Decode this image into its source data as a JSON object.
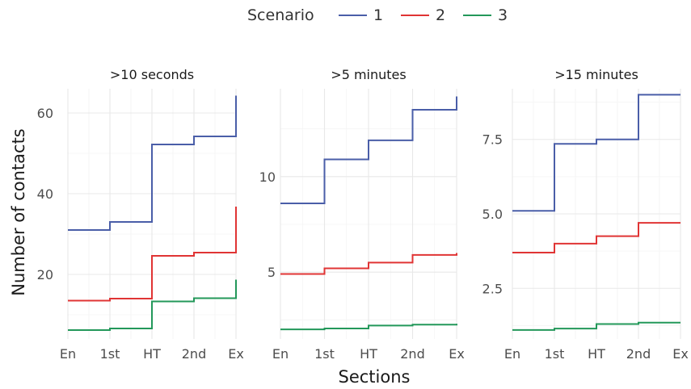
{
  "legend": {
    "title": "Scenario",
    "position": "top",
    "items": [
      {
        "label": "1",
        "color": "#4a5ea8"
      },
      {
        "label": "2",
        "color": "#e03434"
      },
      {
        "label": "3",
        "color": "#23985a"
      }
    ]
  },
  "axes": {
    "xlabel": "Sections",
    "ylabel": "Number of contacts"
  },
  "chart_data": [
    {
      "type": "line",
      "step": true,
      "title": ">10 seconds",
      "categories": [
        "En",
        "1st",
        "HT",
        "2nd",
        "Ex"
      ],
      "ylim": [
        4,
        66
      ],
      "yticks": [
        20,
        40,
        60
      ],
      "yticklabels": [
        "20",
        "40",
        "60"
      ],
      "grid": true,
      "series": [
        {
          "name": "1",
          "values": [
            31,
            33,
            52.2,
            54.2,
            64.3
          ]
        },
        {
          "name": "2",
          "values": [
            13.5,
            14,
            24.6,
            25.4,
            36.8
          ]
        },
        {
          "name": "3",
          "values": [
            6.2,
            6.6,
            13.3,
            14.1,
            18.7
          ]
        }
      ]
    },
    {
      "type": "line",
      "step": true,
      "title": ">5 minutes",
      "categories": [
        "En",
        "1st",
        "HT",
        "2nd",
        "Ex"
      ],
      "ylim": [
        1.5,
        14.6
      ],
      "yticks": [
        5,
        10
      ],
      "yticklabels": [
        "5",
        "10"
      ],
      "grid": true,
      "series": [
        {
          "name": "1",
          "values": [
            8.6,
            10.9,
            11.9,
            13.5,
            14.2
          ]
        },
        {
          "name": "2",
          "values": [
            4.9,
            5.2,
            5.5,
            5.9,
            6.0
          ]
        },
        {
          "name": "3",
          "values": [
            2.0,
            2.05,
            2.2,
            2.25,
            2.3
          ]
        }
      ]
    },
    {
      "type": "line",
      "step": true,
      "title": ">15 minutes",
      "categories": [
        "En",
        "1st",
        "HT",
        "2nd",
        "Ex"
      ],
      "ylim": [
        0.8,
        9.2
      ],
      "yticks": [
        2.5,
        5.0,
        7.5
      ],
      "yticklabels": [
        "2.5",
        "5.0",
        "7.5"
      ],
      "grid": true,
      "series": [
        {
          "name": "1",
          "values": [
            5.1,
            7.35,
            7.5,
            9.0,
            9.0
          ]
        },
        {
          "name": "2",
          "values": [
            3.7,
            4.0,
            4.25,
            4.7,
            4.7
          ]
        },
        {
          "name": "3",
          "values": [
            1.1,
            1.15,
            1.3,
            1.35,
            1.35
          ]
        }
      ]
    }
  ]
}
